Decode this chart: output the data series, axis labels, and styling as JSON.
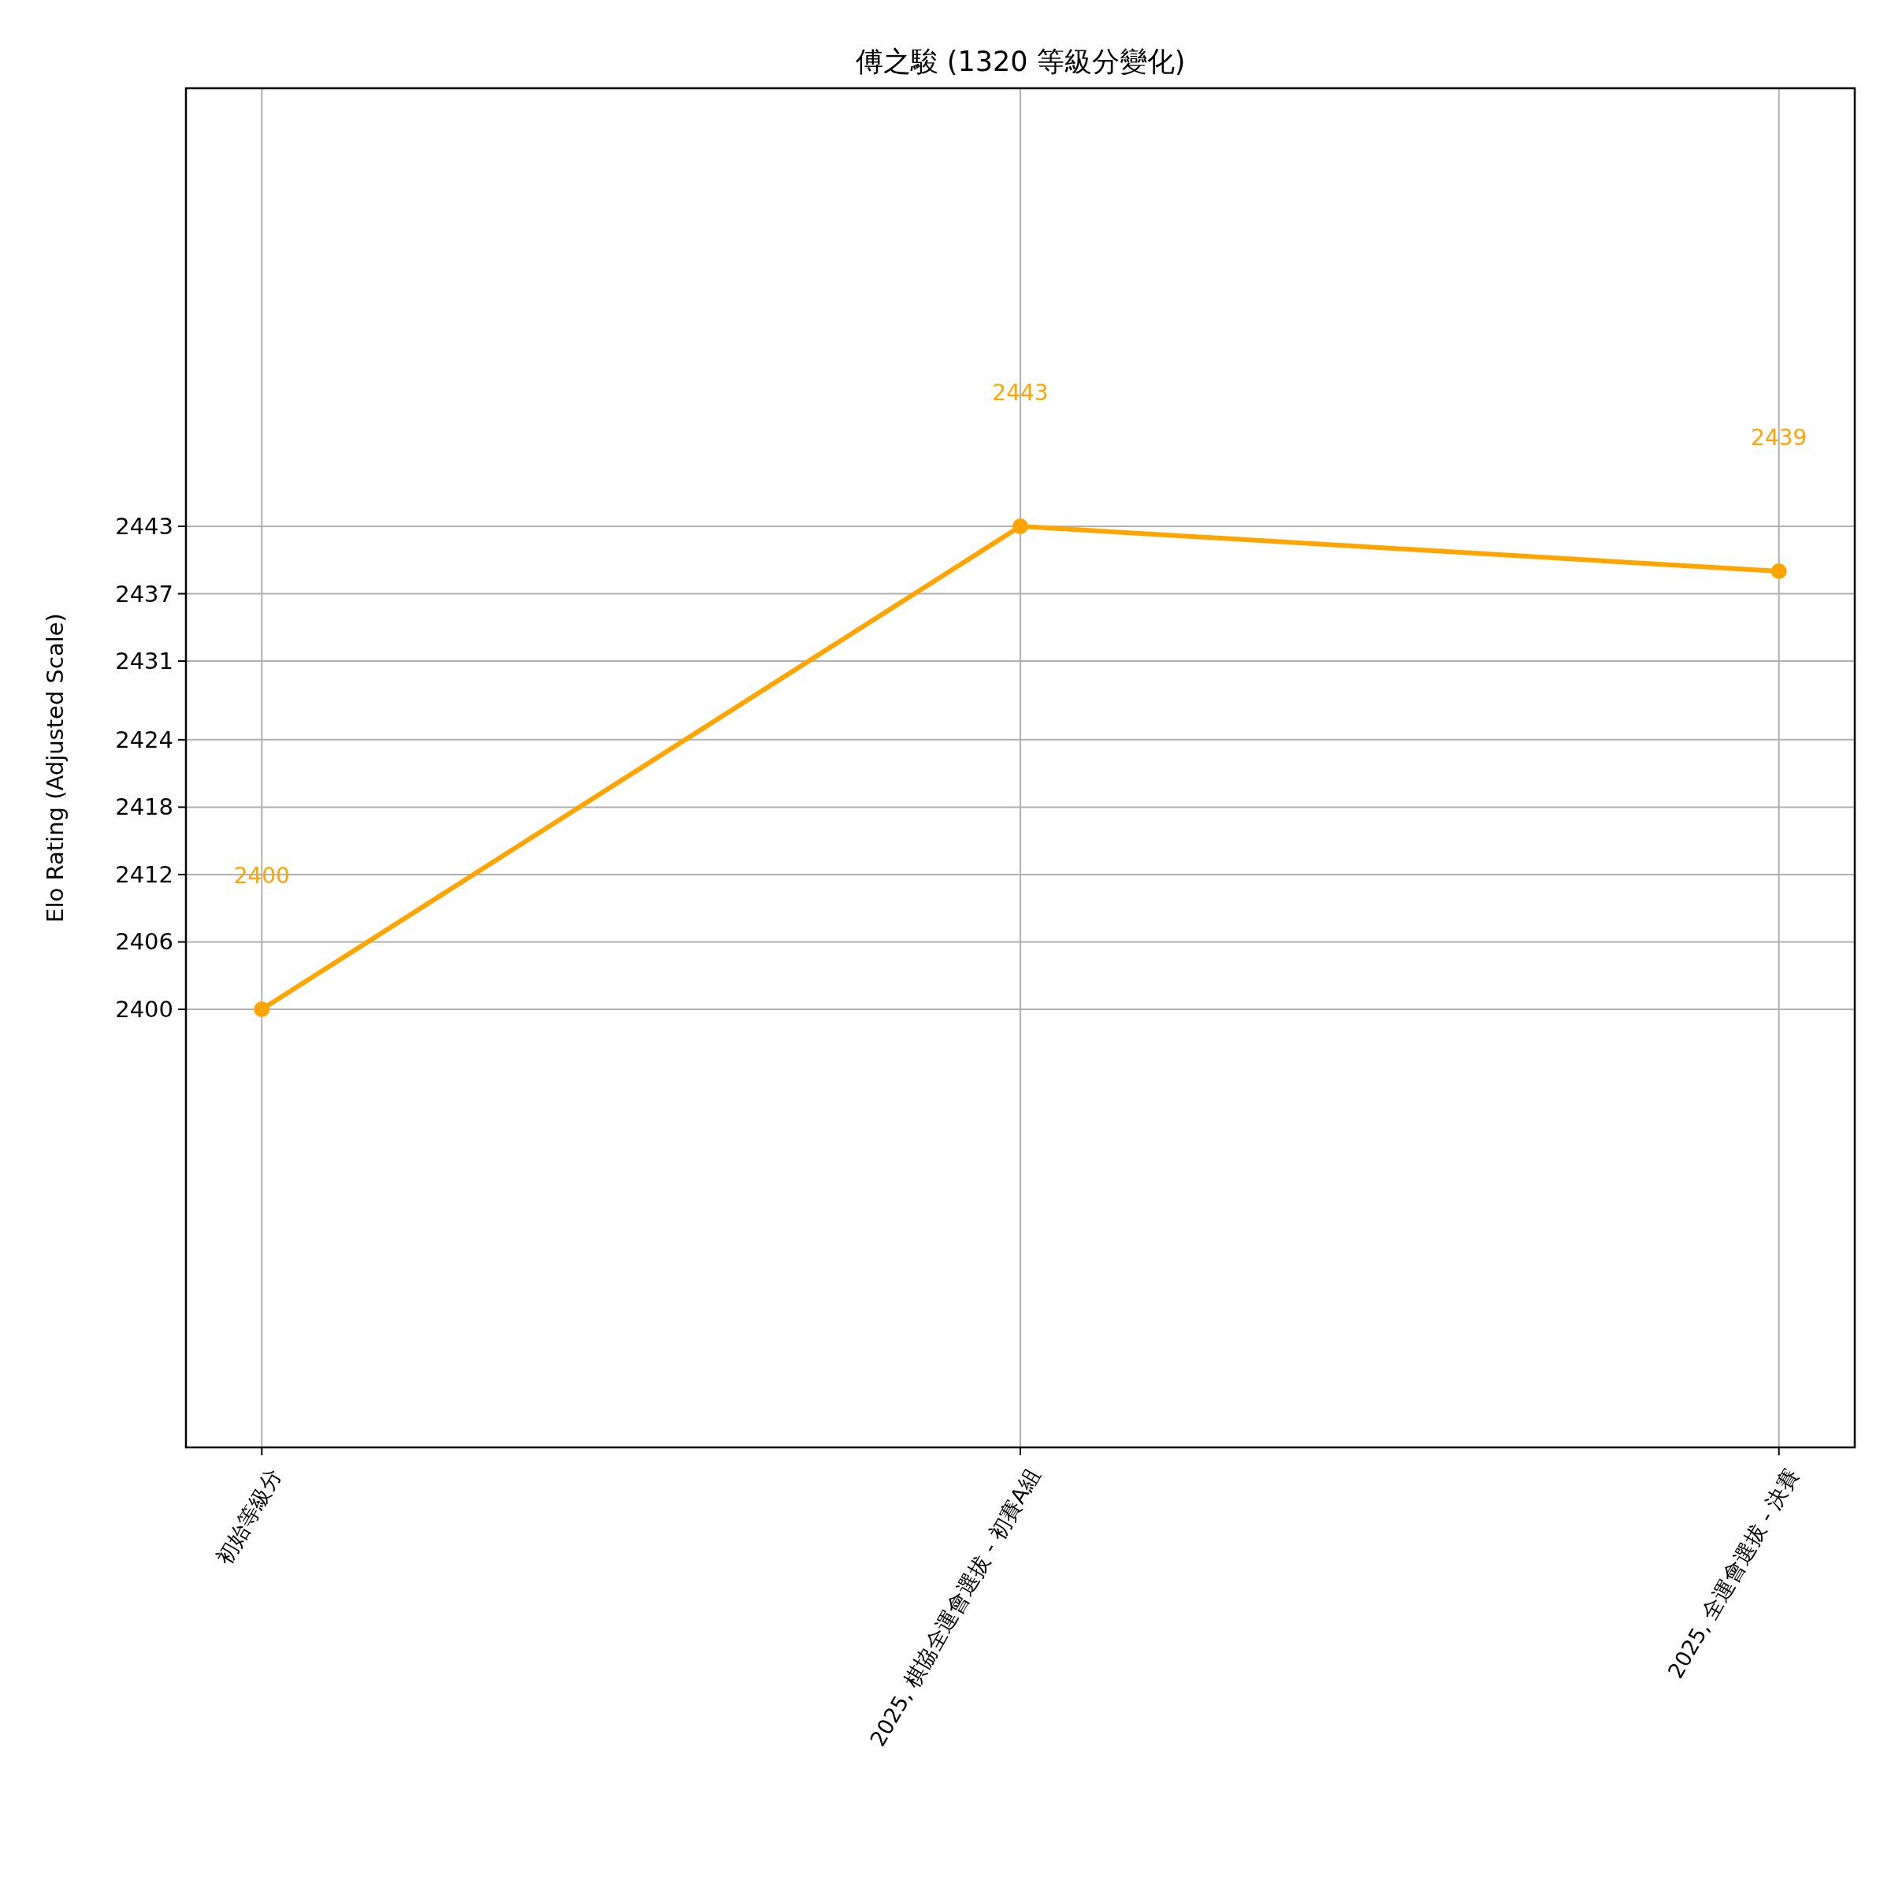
{
  "chart_data": {
    "type": "line",
    "title": "傅之駿 (1320 等級分變化)",
    "ylabel": "Elo Rating (Adjusted Scale)",
    "categories": [
      "初始等級分",
      "2025, 棋協全運會選拔 - 初賽A組",
      "2025, 全運會選拔 - 決賽"
    ],
    "series": [
      {
        "color": "#ffa500",
        "values": [
          2400,
          2443,
          2439
        ]
      }
    ],
    "ylim": [
      2361,
      2482
    ],
    "yticks": [
      2400,
      2406,
      2412,
      2418,
      2424,
      2431,
      2437,
      2443
    ],
    "annotations": [
      "2400",
      "2443",
      "2439"
    ],
    "grid": true,
    "marker": "circle",
    "line_style": "solid"
  }
}
